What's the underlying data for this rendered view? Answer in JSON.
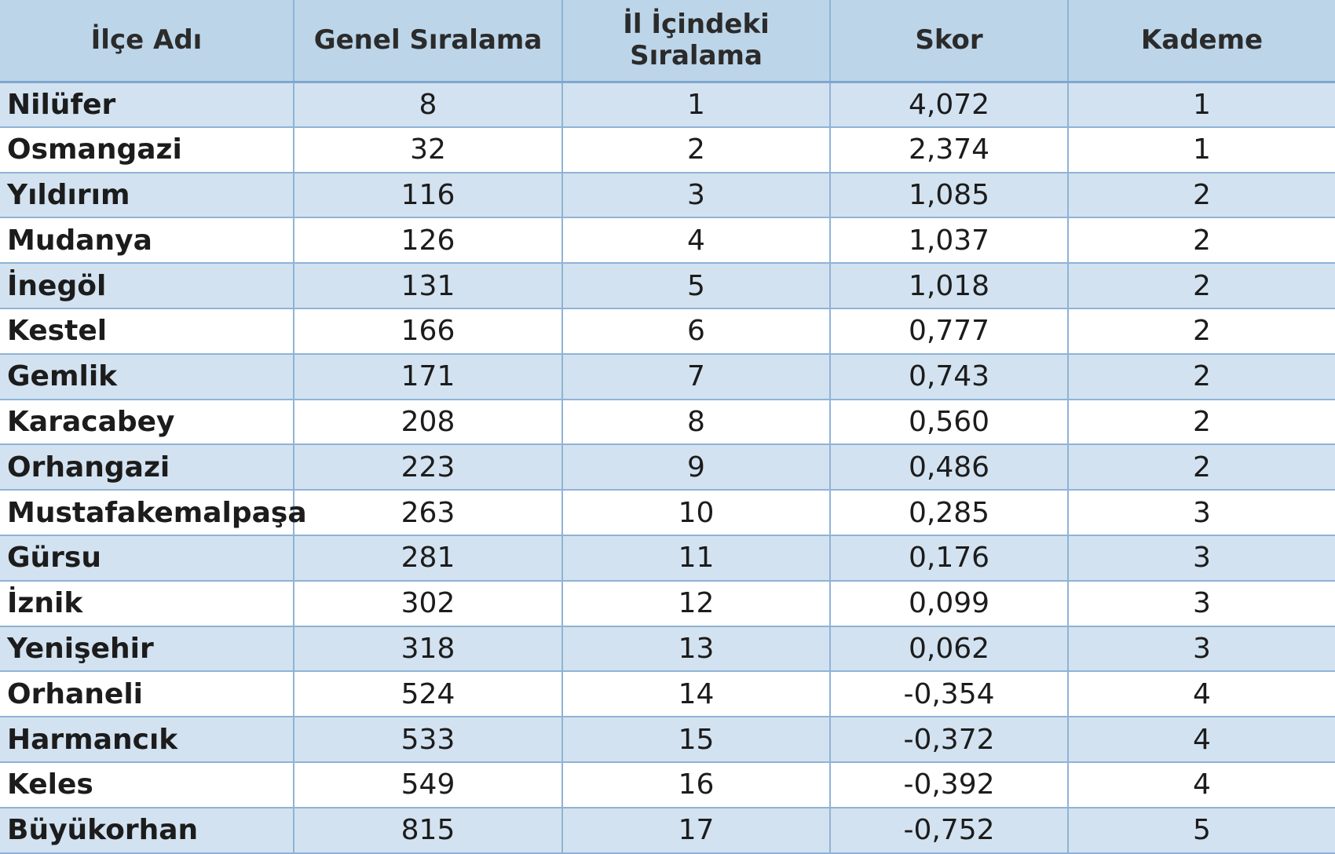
{
  "table": {
    "headers": {
      "district": "İlçe Adı",
      "general_rank": "Genel Sıralama",
      "provincial_rank_line1": "İl İçindeki",
      "provincial_rank_line2": "Sıralama",
      "score": "Skor",
      "tier": "Kademe"
    },
    "rows": [
      {
        "district": "Nilüfer",
        "general_rank": "8",
        "provincial_rank": "1",
        "score": "4,072",
        "tier": "1"
      },
      {
        "district": "Osmangazi",
        "general_rank": "32",
        "provincial_rank": "2",
        "score": "2,374",
        "tier": "1"
      },
      {
        "district": "Yıldırım",
        "general_rank": "116",
        "provincial_rank": "3",
        "score": "1,085",
        "tier": "2"
      },
      {
        "district": "Mudanya",
        "general_rank": "126",
        "provincial_rank": "4",
        "score": "1,037",
        "tier": "2"
      },
      {
        "district": "İnegöl",
        "general_rank": "131",
        "provincial_rank": "5",
        "score": "1,018",
        "tier": "2"
      },
      {
        "district": "Kestel",
        "general_rank": "166",
        "provincial_rank": "6",
        "score": "0,777",
        "tier": "2"
      },
      {
        "district": "Gemlik",
        "general_rank": "171",
        "provincial_rank": "7",
        "score": "0,743",
        "tier": "2"
      },
      {
        "district": "Karacabey",
        "general_rank": "208",
        "provincial_rank": "8",
        "score": "0,560",
        "tier": "2"
      },
      {
        "district": "Orhangazi",
        "general_rank": "223",
        "provincial_rank": "9",
        "score": "0,486",
        "tier": "2"
      },
      {
        "district": "Mustafakemalpaşa",
        "general_rank": "263",
        "provincial_rank": "10",
        "score": "0,285",
        "tier": "3"
      },
      {
        "district": "Gürsu",
        "general_rank": "281",
        "provincial_rank": "11",
        "score": "0,176",
        "tier": "3"
      },
      {
        "district": "İznik",
        "general_rank": "302",
        "provincial_rank": "12",
        "score": "0,099",
        "tier": "3"
      },
      {
        "district": "Yenişehir",
        "general_rank": "318",
        "provincial_rank": "13",
        "score": "0,062",
        "tier": "3"
      },
      {
        "district": "Orhaneli",
        "general_rank": "524",
        "provincial_rank": "14",
        "score": "-0,354",
        "tier": "4"
      },
      {
        "district": "Harmancık",
        "general_rank": "533",
        "provincial_rank": "15",
        "score": "-0,372",
        "tier": "4"
      },
      {
        "district": "Keles",
        "general_rank": "549",
        "provincial_rank": "16",
        "score": "-0,392",
        "tier": "4"
      },
      {
        "district": "Büyükorhan",
        "general_rank": "815",
        "provincial_rank": "17",
        "score": "-0,752",
        "tier": "5"
      }
    ]
  }
}
